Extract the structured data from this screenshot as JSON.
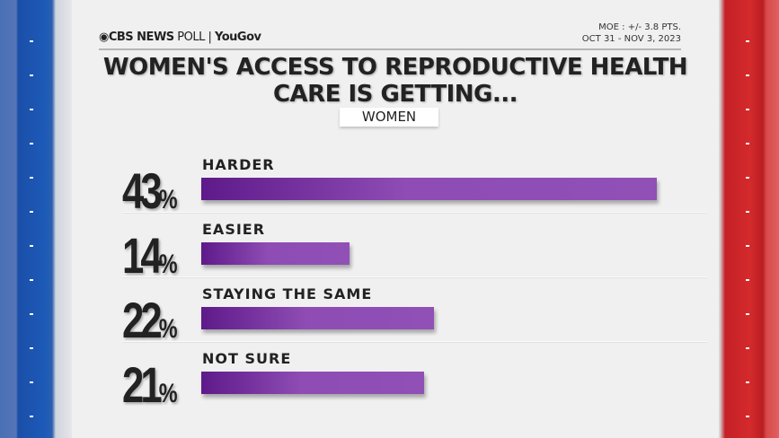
{
  "header": {
    "logo_brand": "CBS NEWS",
    "logo_poll": "POLL",
    "logo_partner": "YouGov",
    "moe": "MOE : +/- 3.8 PTS.",
    "dates": "OCT 31 - NOV 3, 2023"
  },
  "colors": {
    "bar": "#8e4cb4",
    "bar_dark": "#5e1a8a",
    "left_side": "#1d5ab8",
    "right_side": "#d42a2c"
  },
  "chart_data": {
    "type": "bar",
    "orientation": "horizontal",
    "title": "WOMEN'S ACCESS TO REPRODUCTIVE HEALTH CARE IS GETTING...",
    "subtitle": "WOMEN",
    "categories": [
      "HARDER",
      "EASIER",
      "STAYING THE SAME",
      "NOT SURE"
    ],
    "values": [
      43,
      14,
      22,
      21
    ],
    "value_labels": [
      "43",
      "14",
      "22",
      "21"
    ],
    "unit": "%"
  }
}
